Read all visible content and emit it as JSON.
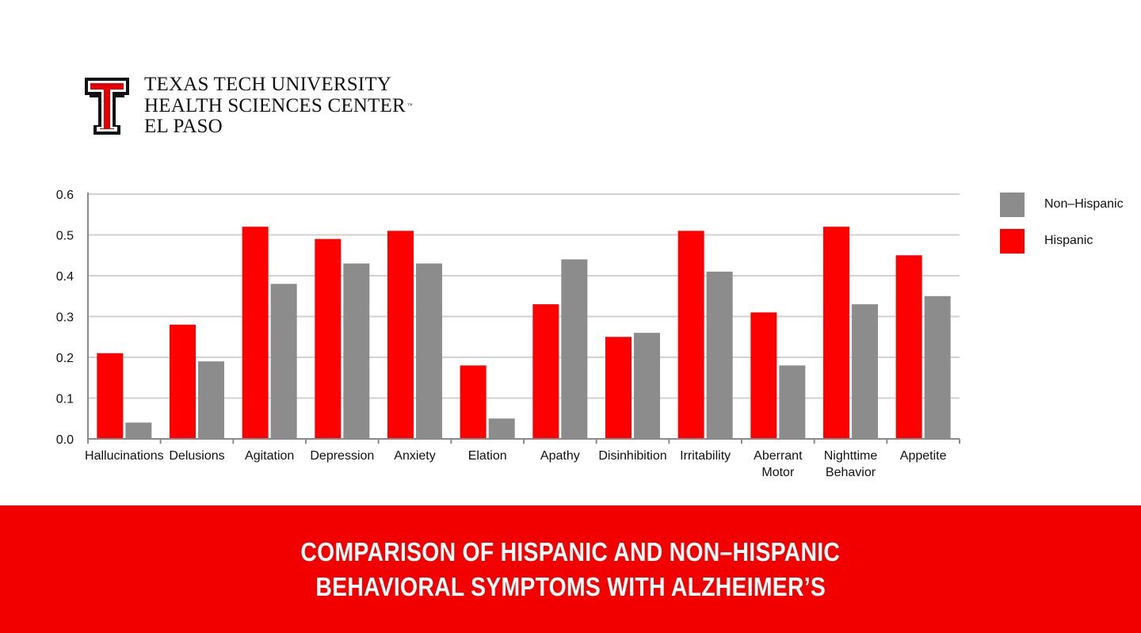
{
  "colors": {
    "hispanic": "#ff0000",
    "non_hispanic": "#8c8c8c",
    "banner": "#f20000",
    "grid": "#d2d2d2",
    "axis": "#8a8a8a"
  },
  "header": {
    "logo_icon": "double-t-logo-icon",
    "org_lines": [
      "TEXAS TECH UNIVERSITY",
      "HEALTH SCIENCES CENTER",
      "EL PASO"
    ],
    "trademark": "™"
  },
  "legend": [
    {
      "label": "Non–Hispanic",
      "color": "#8c8c8c"
    },
    {
      "label": "Hispanic",
      "color": "#ff0000"
    }
  ],
  "banner": {
    "line1": "COMPARISON OF HISPANIC AND NON–HISPANIC",
    "line2": "BEHAVIORAL SYMPTOMS WITH ALZHEIMER’S"
  },
  "chart_data": {
    "type": "bar",
    "categories": [
      "Hallucinations",
      "Delusions",
      "Agitation",
      "Depression",
      "Anxiety",
      "Elation",
      "Apathy",
      "Disinhibition",
      "Irritability",
      "Aberrant Motor",
      "Nighttime Behavior",
      "Appetite"
    ],
    "category_lines": [
      [
        "Hallucinations"
      ],
      [
        "Delusions"
      ],
      [
        "Agitation"
      ],
      [
        "Depression"
      ],
      [
        "Anxiety"
      ],
      [
        "Elation"
      ],
      [
        "Apathy"
      ],
      [
        "Disinhibition"
      ],
      [
        "Irritability"
      ],
      [
        "Aberrant",
        "Motor"
      ],
      [
        "Nighttime",
        "Behavior"
      ],
      [
        "Appetite"
      ]
    ],
    "series": [
      {
        "name": "Hispanic",
        "color": "#ff0000",
        "values": [
          0.21,
          0.28,
          0.52,
          0.49,
          0.51,
          0.18,
          0.33,
          0.25,
          0.51,
          0.31,
          0.52,
          0.45
        ]
      },
      {
        "name": "Non–Hispanic",
        "color": "#8c8c8c",
        "values": [
          0.04,
          0.19,
          0.38,
          0.43,
          0.43,
          0.05,
          0.44,
          0.26,
          0.41,
          0.18,
          0.33,
          0.35
        ]
      }
    ],
    "yticks": [
      "0.0",
      "0.1",
      "0.2",
      "0.3",
      "0.4",
      "0.5",
      "0.6"
    ],
    "ylim": [
      0,
      0.6
    ],
    "grid": true,
    "legend_position": "right",
    "title": "",
    "xlabel": "",
    "ylabel": ""
  }
}
